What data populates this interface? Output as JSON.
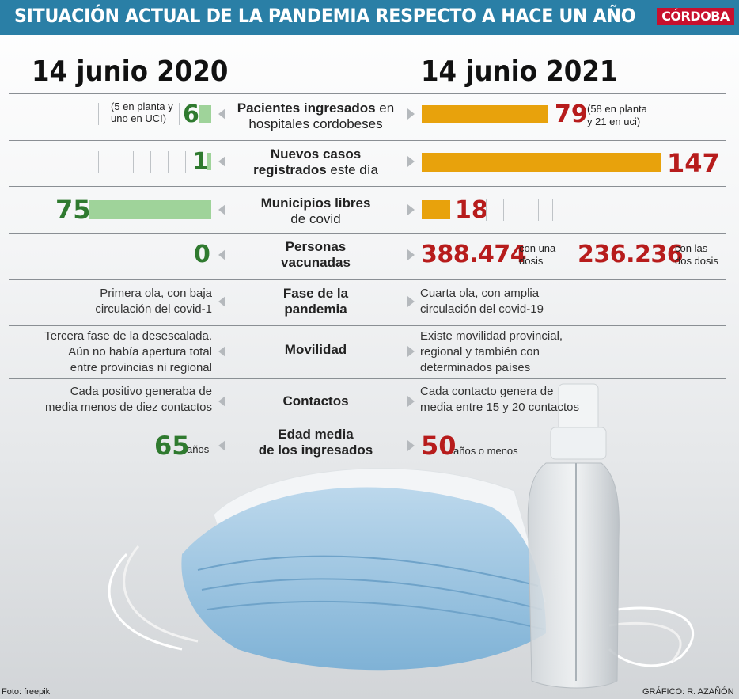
{
  "header": {
    "title": "SITUACIÓN ACTUAL DE LA PANDEMIA RESPECTO A HACE UN AÑO",
    "brand": "CÓRDOBA"
  },
  "dates": {
    "left": "14 junio 2020",
    "right": "14 junio 2021"
  },
  "rows": {
    "pacientes": {
      "label_bold": "Pacientes ingresados",
      "label_rest1": " en",
      "label_rest2": "hospitales cordobeses",
      "value_2020": "6",
      "note_2020_1": "(5 en planta y",
      "note_2020_2": "uno en UCI)",
      "value_2021": "79",
      "note_2021_1": "(58 en planta",
      "note_2021_2": "y 21 en uci)"
    },
    "nuevos": {
      "label_bold": "Nuevos casos",
      "label_bold2": "registrados",
      "label_rest": " este día",
      "value_2020": "1",
      "value_2021": "147"
    },
    "municipios": {
      "label_bold": "Municipios libres",
      "label_rest": "de covid",
      "value_2020": "75",
      "value_2021": "18"
    },
    "vacunadas": {
      "label_bold": "Personas",
      "label_bold2": "vacunadas",
      "value_2020": "0",
      "value_2021_a": "388.474",
      "note_a_1": "con una",
      "note_a_2": "dosis",
      "value_2021_b": "236.236",
      "note_b_1": "con las",
      "note_b_2": "dos dosis"
    },
    "fase": {
      "label_bold": "Fase de la",
      "label_bold2": "pandemia",
      "left_1": "Primera ola, con baja",
      "left_2": "circulación del covid-1",
      "right_1": "Cuarta ola, con amplia",
      "right_2": "circulación del covid-19"
    },
    "movilidad": {
      "label_bold": "Movilidad",
      "left_1": "Tercera fase de la desescalada.",
      "left_2": "Aún no había apertura total",
      "left_3": "entre provincias ni regional",
      "right_1": "Existe movilidad provincial,",
      "right_2": "regional y también con",
      "right_3": "determinados países"
    },
    "contactos": {
      "label_bold": "Contactos",
      "left_1": "Cada positivo generaba de",
      "left_2": "media menos de diez contactos",
      "right_1": "Cada contacto genera de",
      "right_2": "media entre 15 y 20 contactos"
    },
    "edad": {
      "label_bold": "Edad media",
      "label_bold2": "de los ingresados",
      "value_2020": "65",
      "unit_2020": "años",
      "value_2021": "50",
      "unit_2021": "años o menos"
    }
  },
  "footer": {
    "photo": "Foto: freepik",
    "credit": "GRÁFICO: R. AZAÑÓN"
  },
  "colors": {
    "banner": "#2a7fa6",
    "brand": "#c8102e",
    "green": "#2f7a2f",
    "red": "#b71c1c",
    "green_bar": "#9fd39a",
    "orange_bar": "#e8a20c"
  }
}
